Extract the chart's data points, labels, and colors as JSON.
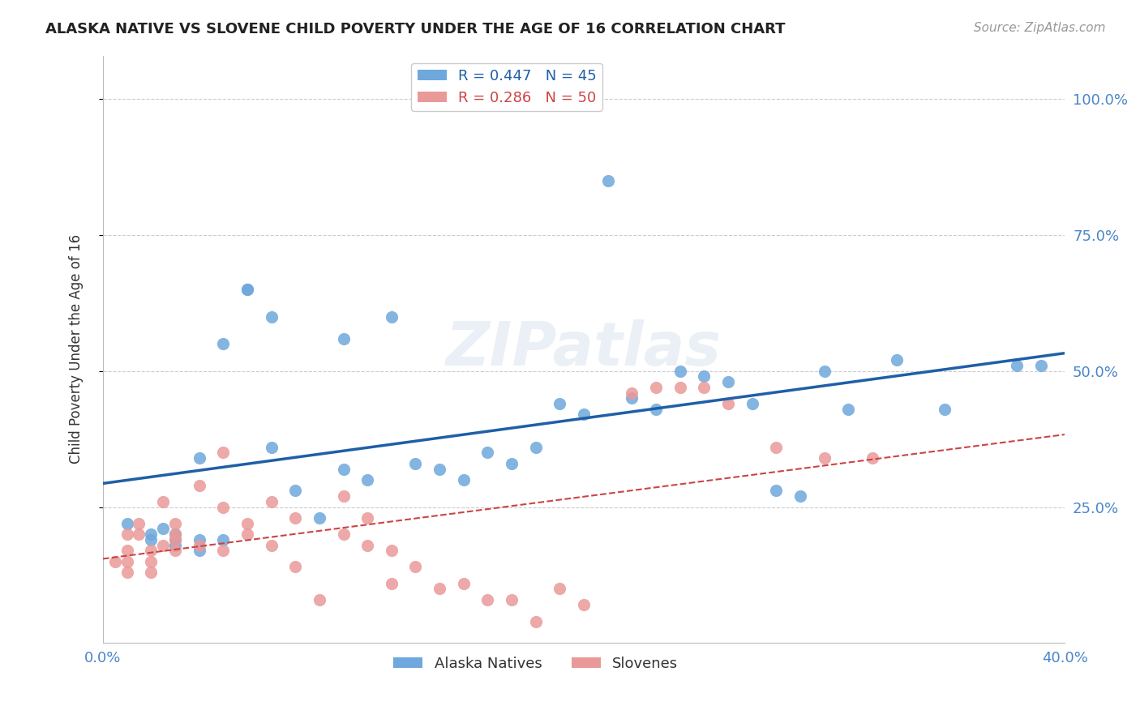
{
  "title": "ALASKA NATIVE VS SLOVENE CHILD POVERTY UNDER THE AGE OF 16 CORRELATION CHART",
  "source": "Source: ZipAtlas.com",
  "ylabel": "Child Poverty Under the Age of 16",
  "ytick_labels": [
    "100.0%",
    "75.0%",
    "50.0%",
    "25.0%"
  ],
  "ytick_values": [
    1.0,
    0.75,
    0.5,
    0.25
  ],
  "xlim": [
    0.0,
    0.4
  ],
  "ylim": [
    0.0,
    1.08
  ],
  "alaska_color": "#6fa8dc",
  "slovene_color": "#ea9999",
  "alaska_line_color": "#1f5fa6",
  "slovene_line_color": "#cc4444",
  "alaska_R": 0.447,
  "alaska_N": 45,
  "slovene_R": 0.286,
  "slovene_N": 50,
  "grid_color": "#cccccc",
  "background_color": "#ffffff",
  "alaska_x": [
    0.01,
    0.02,
    0.02,
    0.025,
    0.03,
    0.03,
    0.03,
    0.04,
    0.04,
    0.04,
    0.05,
    0.05,
    0.06,
    0.06,
    0.07,
    0.07,
    0.08,
    0.09,
    0.1,
    0.1,
    0.11,
    0.12,
    0.13,
    0.14,
    0.15,
    0.16,
    0.17,
    0.18,
    0.19,
    0.2,
    0.21,
    0.22,
    0.23,
    0.24,
    0.25,
    0.26,
    0.27,
    0.28,
    0.29,
    0.3,
    0.31,
    0.33,
    0.35,
    0.38,
    0.39
  ],
  "alaska_y": [
    0.22,
    0.2,
    0.19,
    0.21,
    0.2,
    0.19,
    0.18,
    0.34,
    0.19,
    0.17,
    0.55,
    0.19,
    0.65,
    0.65,
    0.6,
    0.36,
    0.28,
    0.23,
    0.56,
    0.32,
    0.3,
    0.6,
    0.33,
    0.32,
    0.3,
    0.35,
    0.33,
    0.36,
    0.44,
    0.42,
    0.85,
    0.45,
    0.43,
    0.5,
    0.49,
    0.48,
    0.44,
    0.28,
    0.27,
    0.5,
    0.43,
    0.52,
    0.43,
    0.51,
    0.51
  ],
  "slovene_x": [
    0.005,
    0.01,
    0.01,
    0.01,
    0.01,
    0.015,
    0.015,
    0.02,
    0.02,
    0.02,
    0.025,
    0.025,
    0.03,
    0.03,
    0.03,
    0.03,
    0.04,
    0.04,
    0.05,
    0.05,
    0.05,
    0.06,
    0.06,
    0.07,
    0.07,
    0.08,
    0.08,
    0.09,
    0.1,
    0.1,
    0.11,
    0.11,
    0.12,
    0.12,
    0.13,
    0.14,
    0.15,
    0.16,
    0.17,
    0.18,
    0.19,
    0.2,
    0.22,
    0.23,
    0.24,
    0.25,
    0.26,
    0.28,
    0.3,
    0.32
  ],
  "slovene_y": [
    0.15,
    0.2,
    0.17,
    0.15,
    0.13,
    0.22,
    0.2,
    0.17,
    0.15,
    0.13,
    0.26,
    0.18,
    0.22,
    0.2,
    0.19,
    0.17,
    0.29,
    0.18,
    0.35,
    0.25,
    0.17,
    0.22,
    0.2,
    0.26,
    0.18,
    0.23,
    0.14,
    0.08,
    0.27,
    0.2,
    0.23,
    0.18,
    0.17,
    0.11,
    0.14,
    0.1,
    0.11,
    0.08,
    0.08,
    0.04,
    0.1,
    0.07,
    0.46,
    0.47,
    0.47,
    0.47,
    0.44,
    0.36,
    0.34,
    0.34
  ]
}
